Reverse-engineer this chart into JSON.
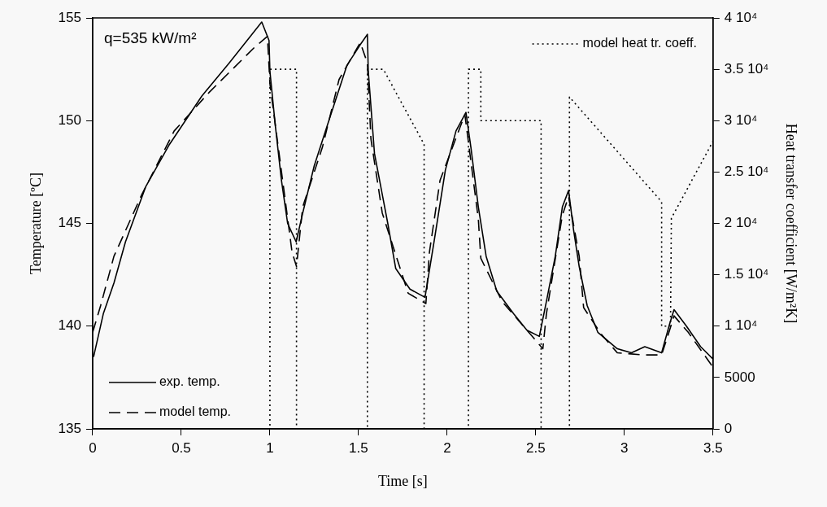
{
  "chart_data": {
    "type": "line",
    "xlabel": "Time [s]",
    "ylabel": "Temperature [ºC]",
    "y2label": "Heat transfer coefficient [W/m²K]",
    "annotations": [
      "q=535 kW/m²"
    ],
    "xlim": [
      0,
      3.5
    ],
    "xticks": [
      0,
      0.5,
      1,
      1.5,
      2,
      2.5,
      3,
      3.5
    ],
    "ylim": [
      135,
      155
    ],
    "yticks": [
      135,
      140,
      145,
      150,
      155
    ],
    "y2lim": [
      0,
      40000
    ],
    "y2ticks": [
      0,
      5000,
      {
        "value": 10000,
        "label": "1 10⁴"
      },
      {
        "value": 15000,
        "label": "1.5 10⁴"
      },
      {
        "value": 20000,
        "label": "2 10⁴"
      },
      {
        "value": 25000,
        "label": "2.5 10⁴"
      },
      {
        "value": 30000,
        "label": "3 10⁴"
      },
      {
        "value": 35000,
        "label": "3.5 10⁴"
      },
      {
        "value": 40000,
        "label": "4 10⁴"
      }
    ],
    "grid": false,
    "legend": "bottom left",
    "series": [
      {
        "name": "exp. temp.",
        "color": "#000000",
        "line_style": "solid",
        "x": [
          0.005,
          0.06,
          0.12,
          0.185,
          0.3,
          0.43,
          0.616,
          0.77,
          0.954,
          0.995,
          1.0,
          1.03,
          1.065,
          1.1,
          1.148,
          1.185,
          1.25,
          1.34,
          1.435,
          1.51,
          1.55,
          1.555,
          1.59,
          1.665,
          1.71,
          1.79,
          1.875,
          1.926,
          1.99,
          2.05,
          2.106,
          2.134,
          2.176,
          2.22,
          2.28,
          2.375,
          2.45,
          2.52,
          2.56,
          2.61,
          2.65,
          2.685,
          2.713,
          2.745,
          2.79,
          2.85,
          2.96,
          3.04,
          3.115,
          3.21,
          3.255,
          3.28,
          3.35,
          3.43,
          3.5
        ],
        "values": [
          138.5,
          140.6,
          142.1,
          144.1,
          146.8,
          148.8,
          151.2,
          152.8,
          154.8,
          153.9,
          152.4,
          149.8,
          147.1,
          145.0,
          144.1,
          145.5,
          147.8,
          150.2,
          152.7,
          153.7,
          154.2,
          152.4,
          148.4,
          145.0,
          142.8,
          141.8,
          141.4,
          144.1,
          147.6,
          149.5,
          150.4,
          148.7,
          145.8,
          143.4,
          141.7,
          140.6,
          139.8,
          139.5,
          141.2,
          143.4,
          145.8,
          146.6,
          144.7,
          142.9,
          141.0,
          139.7,
          138.9,
          138.7,
          139.0,
          138.7,
          140.1,
          140.8,
          140.0,
          139.0,
          138.4
        ]
      },
      {
        "name": "model temp.",
        "color": "#000000",
        "line_style": "dashed",
        "x": [
          0,
          0.045,
          0.12,
          0.277,
          0.46,
          0.66,
          0.917,
          0.986,
          1.0,
          1.125,
          1.15,
          1.185,
          1.296,
          1.39,
          1.51,
          1.55,
          1.57,
          1.634,
          1.78,
          1.88,
          1.9,
          1.96,
          2.1,
          2.176,
          2.19,
          2.31,
          2.47,
          2.54,
          2.56,
          2.65,
          2.685,
          2.745,
          2.77,
          2.87,
          2.96,
          3.11,
          3.21,
          3.255,
          3.28,
          3.36,
          3.5
        ],
        "values": [
          139.7,
          141.0,
          143.4,
          146.4,
          149.5,
          151.4,
          153.6,
          154.1,
          151.8,
          143.6,
          142.9,
          145.8,
          148.7,
          152.0,
          153.8,
          152.8,
          149.1,
          145.5,
          141.6,
          141.1,
          143.6,
          147.1,
          150.3,
          145.2,
          143.3,
          141.2,
          139.6,
          138.9,
          140.6,
          145.4,
          146.3,
          143.4,
          140.9,
          139.6,
          138.7,
          138.6,
          138.6,
          139.8,
          140.5,
          139.7,
          138.0
        ]
      },
      {
        "name": "model heat tr. coeff.",
        "color": "#000000",
        "line_style": "dotted",
        "axis": "y2",
        "x": [
          0,
          1.0,
          1.0,
          1.15,
          1.15,
          1.55,
          1.55,
          1.64,
          1.87,
          1.87,
          2.12,
          2.12,
          2.19,
          2.19,
          2.53,
          2.53,
          2.69,
          2.69,
          3.21,
          3.21,
          3.26,
          3.265,
          3.5
        ],
        "values": [
          0,
          0,
          35000,
          35000,
          0,
          0,
          35000,
          35000,
          27700,
          0,
          0,
          35000,
          35000,
          30000,
          30000,
          0,
          0,
          32300,
          22100,
          10000,
          10000,
          20500,
          28000
        ]
      }
    ]
  }
}
